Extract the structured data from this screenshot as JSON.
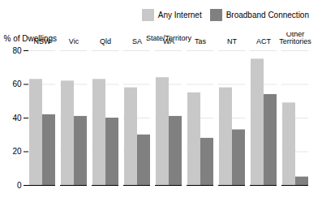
{
  "chart_data": {
    "type": "bar",
    "xlabel": "State/Territory",
    "ylabel": "% of Dwellings",
    "categories": [
      "NSW",
      "Vic",
      "Qld",
      "SA",
      "WA",
      "Tas",
      "NT",
      "ACT",
      "Other Territories"
    ],
    "series": [
      {
        "name": "Any Internet",
        "color": "#c8c8c8",
        "values": [
          63,
          62,
          63,
          58,
          64,
          55,
          58,
          75,
          49
        ]
      },
      {
        "name": "Broadband Connection",
        "color": "#808080",
        "values": [
          42,
          41,
          40,
          30,
          41,
          28,
          33,
          54,
          5
        ]
      }
    ],
    "ylim": [
      0,
      80
    ],
    "yticks": [
      0,
      20,
      40,
      60,
      80
    ],
    "grid": true,
    "legend": "upper right"
  }
}
